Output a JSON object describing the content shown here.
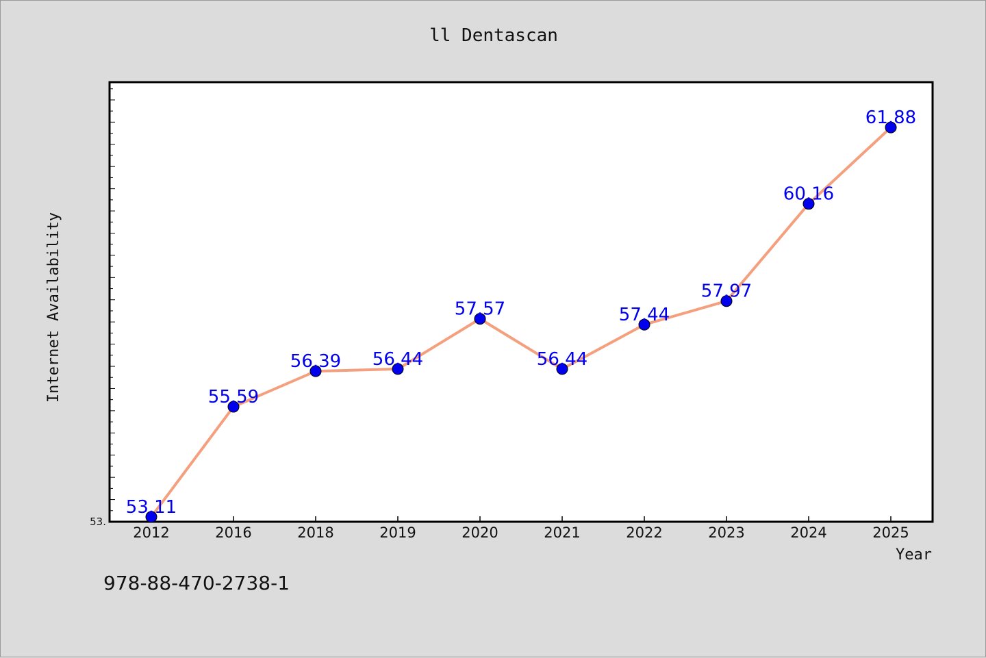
{
  "chart_data": {
    "type": "line",
    "title": "ll Dentascan",
    "xlabel": "Year",
    "ylabel": "Internet Availability",
    "categories": [
      "2012",
      "2016",
      "2018",
      "2019",
      "2020",
      "2021",
      "2022",
      "2023",
      "2024",
      "2025"
    ],
    "values": [
      53.11,
      55.59,
      56.39,
      56.44,
      57.57,
      56.44,
      57.44,
      57.97,
      60.16,
      61.88
    ],
    "value_labels": [
      "53.11",
      "55.59",
      "56.39",
      "56.44",
      "57.57",
      "56.44",
      "57.44",
      "57.97",
      "60.16",
      "61.88"
    ],
    "y_tick_label": "53.",
    "ylim": [
      53.0,
      62.9
    ],
    "grid": false,
    "legend": "none",
    "colors": {
      "line": "#f4a07e",
      "marker": "#0000ee",
      "value_label": "#0000ee",
      "plot_background": "#ffffff",
      "page_background": "#dcdcdc"
    }
  },
  "footer": {
    "identifier": "978-88-470-2738-1"
  }
}
